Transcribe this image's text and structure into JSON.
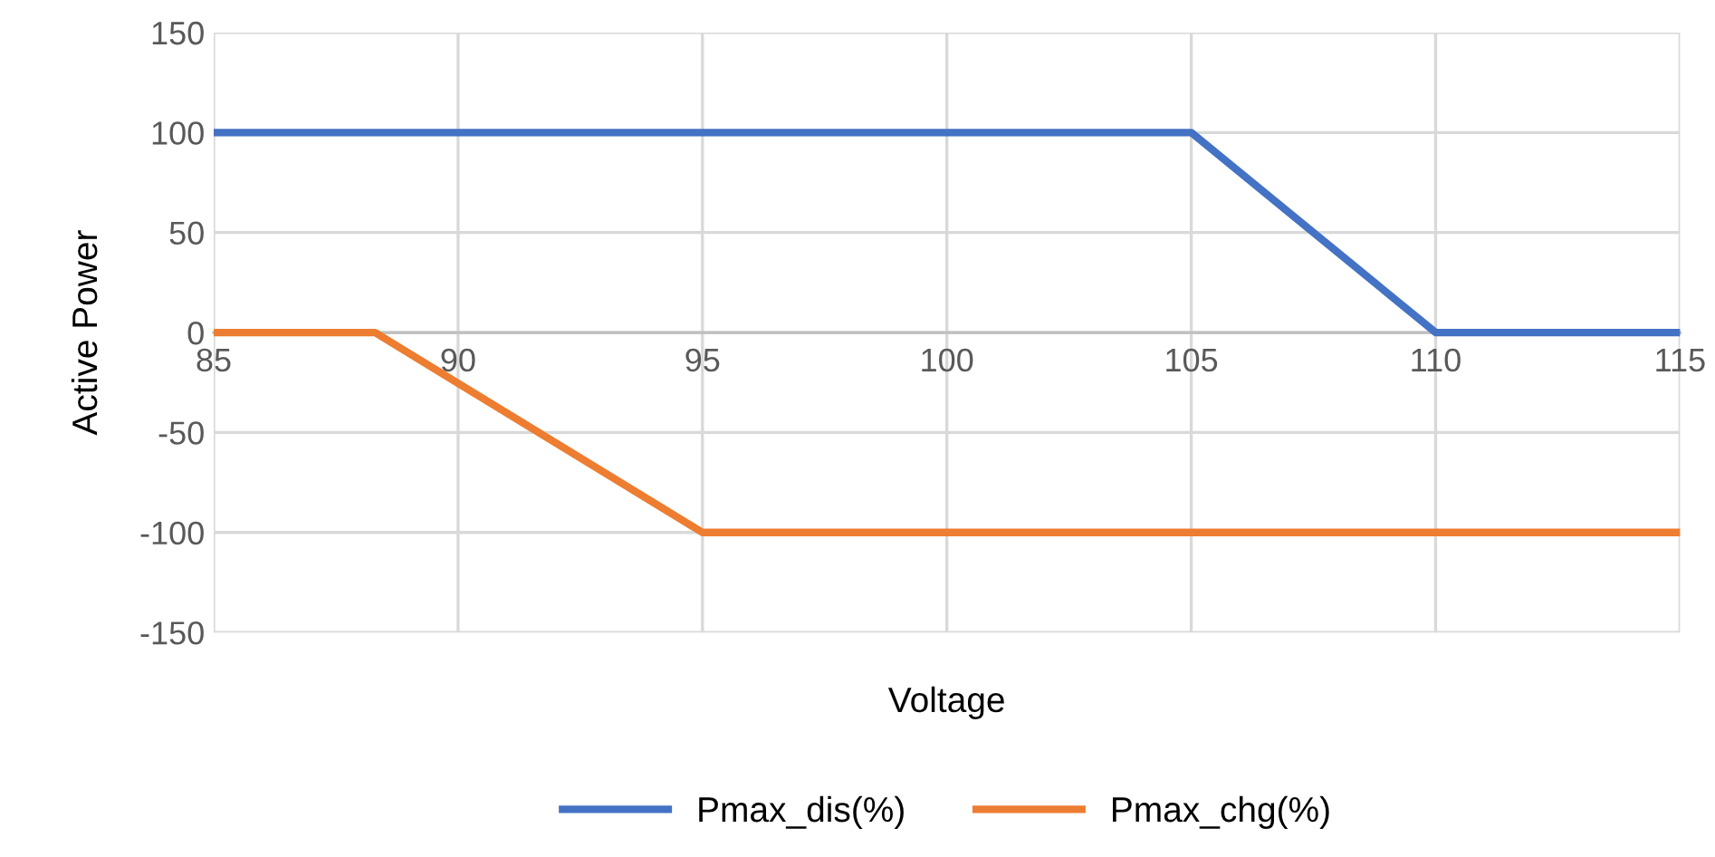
{
  "chart_data": {
    "type": "line",
    "xlabel": "Voltage",
    "ylabel": "Active Power",
    "xlim": [
      85,
      115
    ],
    "xticks": [
      85,
      90,
      95,
      100,
      105,
      110,
      115
    ],
    "ylim": [
      -150,
      150
    ],
    "yticks": [
      -150,
      -100,
      -50,
      0,
      50,
      100,
      150
    ],
    "grid": true,
    "legend": "bottom",
    "marker": "none",
    "line_style": "solid",
    "series": [
      {
        "name": "Pmax_dis(%)",
        "color": "#4472c4",
        "x": [
          85,
          105,
          110,
          115
        ],
        "values": [
          100,
          100,
          0,
          0
        ]
      },
      {
        "name": "Pmax_chg(%)",
        "color": "#ed7d31",
        "x": [
          85,
          88.3,
          95,
          115
        ],
        "values": [
          0,
          0,
          -100,
          -100
        ]
      }
    ]
  }
}
